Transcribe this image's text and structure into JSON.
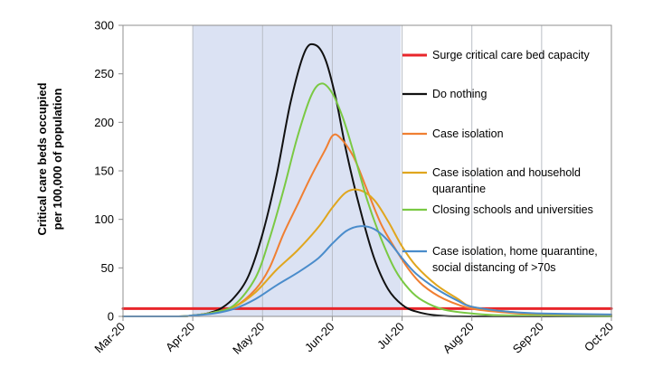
{
  "chart_data": {
    "type": "line",
    "ylabel_lines": [
      "Critical care beds occupied",
      "per 100,000 of population"
    ],
    "xlabel": "",
    "x_tick_labels": [
      "Mar-20",
      "Apr-20",
      "May-20",
      "Jun-20",
      "Jul-20",
      "Aug-20",
      "Sep-20",
      "Oct-20"
    ],
    "xlim": [
      0,
      7
    ],
    "ylim": [
      0,
      300
    ],
    "y_ticks": [
      0,
      50,
      100,
      150,
      200,
      250,
      300
    ],
    "grid": "vertical",
    "shaded_period": {
      "from": 1,
      "to": 3.98,
      "color": "#dbe2f3"
    },
    "legend_position": "right",
    "series": [
      {
        "name": "Surge critical care bed capacity",
        "color": "#e8262b",
        "legend_lines": [
          "Surge critical care bed capacity"
        ],
        "x": [
          0,
          7
        ],
        "y": [
          8,
          8
        ]
      },
      {
        "name": "Do nothing",
        "color": "#111111",
        "legend_lines": [
          "Do nothing"
        ],
        "x": [
          0,
          0.8,
          1,
          1.2,
          1.4,
          1.6,
          1.8,
          2,
          2.2,
          2.4,
          2.6,
          2.75,
          2.9,
          3.05,
          3.2,
          3.4,
          3.6,
          3.8,
          4,
          4.2,
          4.5,
          5,
          7
        ],
        "y": [
          0,
          0,
          1,
          3,
          8,
          20,
          42,
          85,
          145,
          220,
          272,
          280,
          265,
          225,
          170,
          110,
          60,
          28,
          12,
          5,
          1,
          0,
          0
        ]
      },
      {
        "name": "Case isolation",
        "color": "#f07f32",
        "legend_lines": [
          "Case isolation"
        ],
        "x": [
          0,
          0.8,
          1,
          1.3,
          1.6,
          1.9,
          2.1,
          2.3,
          2.5,
          2.7,
          2.9,
          3,
          3.1,
          3.3,
          3.5,
          3.7,
          3.9,
          4.1,
          4.3,
          4.6,
          5,
          5.5,
          6,
          7
        ],
        "y": [
          0,
          0,
          1,
          4,
          10,
          28,
          50,
          85,
          115,
          145,
          172,
          186,
          185,
          165,
          130,
          95,
          70,
          48,
          32,
          18,
          8,
          4,
          2,
          1
        ]
      },
      {
        "name": "Case isolation and household quarantine",
        "color": "#e0a61e",
        "legend_lines": [
          "Case isolation and household",
          "quarantine"
        ],
        "x": [
          0,
          0.8,
          1,
          1.3,
          1.6,
          1.9,
          2.2,
          2.5,
          2.8,
          3,
          3.2,
          3.4,
          3.6,
          3.8,
          4,
          4.2,
          4.5,
          4.8,
          5,
          5.5,
          6,
          7
        ],
        "y": [
          0,
          0,
          1,
          4,
          10,
          25,
          48,
          68,
          92,
          112,
          128,
          130,
          120,
          98,
          72,
          52,
          32,
          18,
          10,
          5,
          2,
          1
        ]
      },
      {
        "name": "Closing schools and universities",
        "color": "#7ac943",
        "legend_lines": [
          "Closing schools and universities"
        ],
        "x": [
          0,
          0.8,
          1,
          1.3,
          1.6,
          1.9,
          2.1,
          2.3,
          2.5,
          2.7,
          2.85,
          3,
          3.15,
          3.3,
          3.5,
          3.7,
          3.9,
          4.1,
          4.3,
          4.6,
          5,
          5.5,
          7
        ],
        "y": [
          0,
          0,
          1,
          4,
          12,
          40,
          80,
          130,
          185,
          228,
          240,
          230,
          205,
          170,
          120,
          80,
          48,
          28,
          16,
          7,
          3,
          1,
          0
        ]
      },
      {
        "name": "Case isolation, home quarantine, social distancing of >70s",
        "color": "#4a8ccb",
        "legend_lines": [
          "Case isolation, home quarantine,",
          "social distancing of >70s"
        ],
        "x": [
          0,
          0.8,
          1,
          1.3,
          1.6,
          1.9,
          2.2,
          2.5,
          2.8,
          3,
          3.2,
          3.4,
          3.6,
          3.8,
          4,
          4.2,
          4.5,
          4.8,
          5,
          5.5,
          6,
          7
        ],
        "y": [
          0,
          0,
          1,
          3,
          8,
          18,
          32,
          45,
          60,
          75,
          88,
          93,
          90,
          78,
          60,
          44,
          28,
          16,
          10,
          5,
          3,
          2
        ]
      }
    ]
  }
}
